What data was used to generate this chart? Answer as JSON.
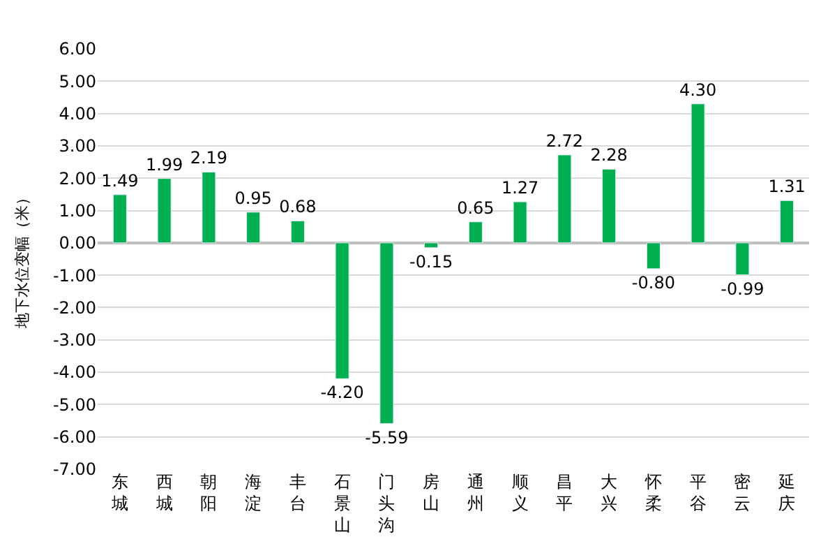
{
  "chart_data": {
    "type": "bar",
    "ylabel": "地下水位变幅（米）",
    "categories": [
      "东城",
      "西城",
      "朝阳",
      "海淀",
      "丰台",
      "石景山",
      "门头沟",
      "房山",
      "通州",
      "顺义",
      "昌平",
      "大兴",
      "怀柔",
      "平谷",
      "密云",
      "延庆"
    ],
    "values": [
      1.49,
      1.99,
      2.19,
      0.95,
      0.68,
      -4.2,
      -5.59,
      -0.15,
      0.65,
      1.27,
      2.72,
      2.28,
      -0.8,
      4.3,
      -0.99,
      1.31
    ],
    "value_labels": [
      "1.49",
      "1.99",
      "2.19",
      "0.95",
      "0.68",
      "-4.20",
      "-5.59",
      "-0.15",
      "0.65",
      "1.27",
      "2.72",
      "2.28",
      "-0.80",
      "4.30",
      "-0.99",
      "1.31"
    ],
    "color": "#00b050",
    "ylim": [
      -7,
      6
    ],
    "yticks": [
      {
        "value": -7,
        "label": "-7.00"
      },
      {
        "value": -6,
        "label": "-6.00"
      },
      {
        "value": -5,
        "label": "-5.00"
      },
      {
        "value": -4,
        "label": "-4.00"
      },
      {
        "value": -3,
        "label": "-3.00"
      },
      {
        "value": -2,
        "label": "-2.00"
      },
      {
        "value": -1,
        "label": "-1.00"
      },
      {
        "value": 0,
        "label": "0.00"
      },
      {
        "value": 1,
        "label": "1.00"
      },
      {
        "value": 2,
        "label": "2.00"
      },
      {
        "value": 3,
        "label": "3.00"
      },
      {
        "value": 4,
        "label": "4.00"
      },
      {
        "value": 5,
        "label": "5.00"
      },
      {
        "value": 6,
        "label": "6.00"
      }
    ],
    "grid": "y"
  }
}
